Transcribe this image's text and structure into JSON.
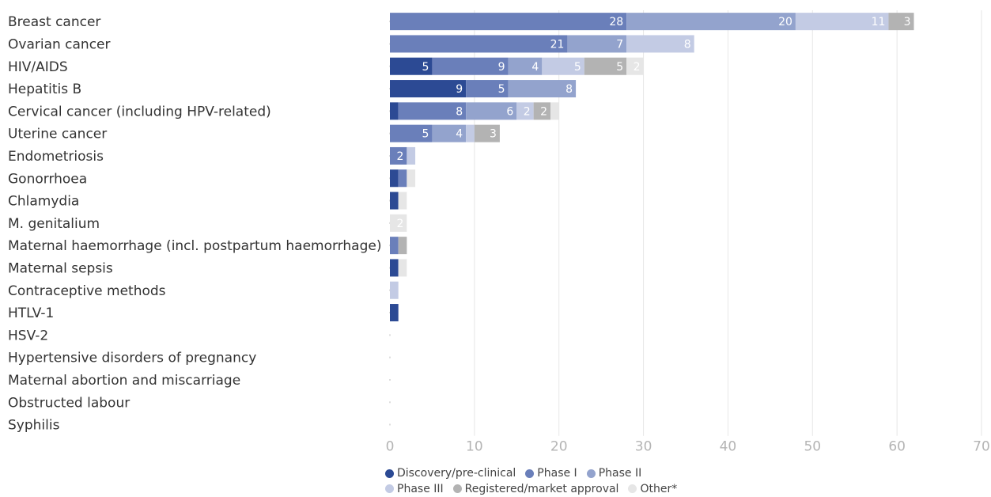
{
  "chart_data": {
    "type": "bar",
    "orientation": "horizontal",
    "stacked": true,
    "categories": [
      "Breast cancer",
      "Ovarian cancer",
      "HIV/AIDS",
      "Hepatitis B",
      "Cervical cancer (including HPV-related)",
      "Uterine cancer",
      "Endometriosis",
      "Gonorrhoea",
      "Chlamydia",
      "M. genitalium",
      "Maternal haemorrhage (incl. postpartum haemorrhage)",
      "Maternal sepsis",
      "Contraceptive methods",
      "HTLV-1",
      "HSV-2",
      "Hypertensive disorders of pregnancy",
      "Maternal abortion and miscarriage",
      "Obstructed labour",
      "Syphilis"
    ],
    "series": [
      {
        "name": "Discovery/pre-clinical",
        "color": "#2c4a94",
        "values": [
          0,
          0,
          5,
          9,
          1,
          0,
          0,
          1,
          1,
          0,
          0,
          1,
          0,
          1,
          0,
          0,
          0,
          0,
          0
        ]
      },
      {
        "name": "Phase I",
        "color": "#6a7fba",
        "values": [
          28,
          21,
          9,
          5,
          8,
          5,
          2,
          1,
          0,
          0,
          1,
          0,
          0,
          0,
          0,
          0,
          0,
          0,
          0
        ]
      },
      {
        "name": "Phase II",
        "color": "#93a3cd",
        "values": [
          20,
          7,
          4,
          8,
          6,
          4,
          0,
          0,
          0,
          0,
          0,
          0,
          0,
          0,
          0,
          0,
          0,
          0,
          0
        ]
      },
      {
        "name": "Phase III",
        "color": "#c3cbe4",
        "values": [
          11,
          8,
          5,
          0,
          2,
          1,
          1,
          0,
          0,
          0,
          0,
          0,
          1,
          0,
          0,
          0,
          0,
          0,
          0
        ]
      },
      {
        "name": "Registered/market approval",
        "color": "#b3b3b3",
        "values": [
          3,
          0,
          5,
          0,
          2,
          3,
          0,
          0,
          0,
          0,
          1,
          0,
          0,
          0,
          0,
          0,
          0,
          0,
          0
        ]
      },
      {
        "name": "Other*",
        "color": "#e6e6e6",
        "values": [
          0,
          0,
          2,
          0,
          1,
          0,
          0,
          1,
          1,
          2,
          0,
          1,
          0,
          0,
          0,
          0,
          0,
          0,
          0
        ]
      }
    ],
    "xlim": [
      0,
      70
    ],
    "xticks": [
      0,
      10,
      20,
      30,
      40,
      50,
      60,
      70
    ],
    "grid": true,
    "legend_position": "bottom",
    "title": "",
    "xlabel": "",
    "ylabel": ""
  }
}
